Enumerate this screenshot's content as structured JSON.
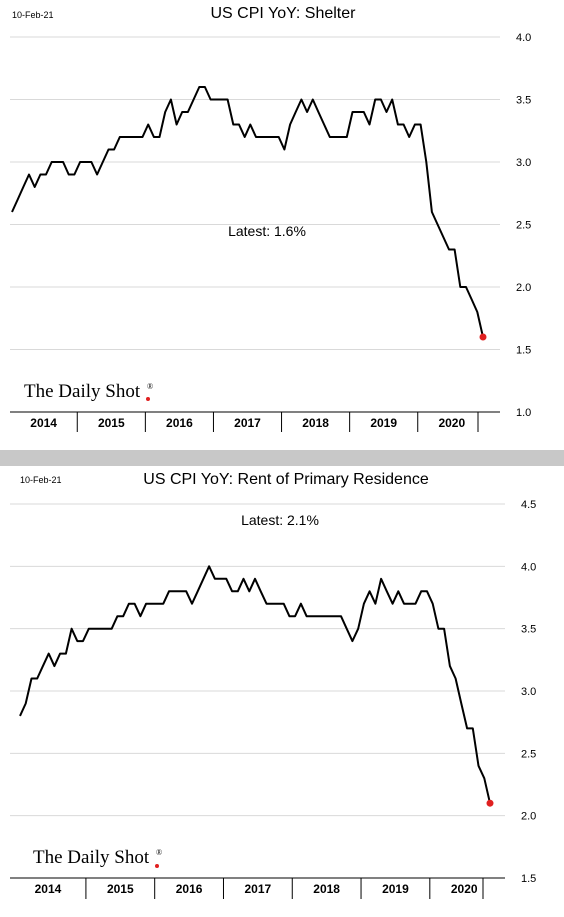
{
  "chart_data": [
    {
      "type": "line",
      "date_label": "10-Feb-21",
      "title": "US CPI YoY: Shelter",
      "annotation": "Latest:  1.6%",
      "source_logo": "The Daily Shot",
      "source_logo_mark": "®",
      "ylim": [
        1.0,
        4.0
      ],
      "yticks": [
        "1.0",
        "1.5",
        "2.0",
        "2.5",
        "3.0",
        "3.5",
        "4.0"
      ],
      "year_labels": [
        "2014",
        "2015",
        "2016",
        "2017",
        "2018",
        "2019",
        "2020"
      ],
      "grid": true,
      "x_start": "2014-01",
      "x_end": "2020-12",
      "last_point_color": "#e02020",
      "y": [
        2.6,
        2.7,
        2.8,
        2.9,
        2.8,
        2.9,
        2.9,
        3.0,
        3.0,
        3.0,
        2.9,
        2.9,
        3.0,
        3.0,
        3.0,
        2.9,
        3.0,
        3.1,
        3.1,
        3.2,
        3.2,
        3.2,
        3.2,
        3.2,
        3.3,
        3.2,
        3.2,
        3.4,
        3.5,
        3.3,
        3.4,
        3.4,
        3.5,
        3.6,
        3.6,
        3.5,
        3.5,
        3.5,
        3.5,
        3.3,
        3.3,
        3.2,
        3.3,
        3.2,
        3.2,
        3.2,
        3.2,
        3.2,
        3.1,
        3.3,
        3.4,
        3.5,
        3.4,
        3.5,
        3.4,
        3.3,
        3.2,
        3.2,
        3.2,
        3.2,
        3.4,
        3.4,
        3.4,
        3.3,
        3.5,
        3.5,
        3.4,
        3.5,
        3.3,
        3.3,
        3.2,
        3.3,
        3.3,
        3.0,
        2.6,
        2.5,
        2.4,
        2.3,
        2.3,
        2.0,
        2.0,
        1.9,
        1.8,
        1.6
      ]
    },
    {
      "type": "line",
      "date_label": "10-Feb-21",
      "title": "US CPI YoY: Rent of Primary Residence",
      "annotation": "Latest:  2.1%",
      "source_logo": "The Daily Shot",
      "source_logo_mark": "®",
      "ylim": [
        1.5,
        4.5
      ],
      "yticks": [
        "1.5",
        "2.0",
        "2.5",
        "3.0",
        "3.5",
        "4.0",
        "4.5"
      ],
      "year_labels": [
        "2014",
        "2015",
        "2016",
        "2017",
        "2018",
        "2019",
        "2020"
      ],
      "grid": true,
      "x_start": "2014-01",
      "x_end": "2020-12",
      "last_point_color": "#e02020",
      "y": [
        2.8,
        2.9,
        3.1,
        3.1,
        3.2,
        3.3,
        3.2,
        3.3,
        3.3,
        3.5,
        3.4,
        3.4,
        3.5,
        3.5,
        3.5,
        3.5,
        3.5,
        3.6,
        3.6,
        3.7,
        3.7,
        3.6,
        3.7,
        3.7,
        3.7,
        3.7,
        3.8,
        3.8,
        3.8,
        3.8,
        3.7,
        3.8,
        3.9,
        4.0,
        3.9,
        3.9,
        3.9,
        3.8,
        3.8,
        3.9,
        3.8,
        3.9,
        3.8,
        3.7,
        3.7,
        3.7,
        3.7,
        3.6,
        3.6,
        3.7,
        3.6,
        3.6,
        3.6,
        3.6,
        3.6,
        3.6,
        3.6,
        3.5,
        3.4,
        3.5,
        3.7,
        3.8,
        3.7,
        3.9,
        3.8,
        3.7,
        3.8,
        3.7,
        3.7,
        3.7,
        3.8,
        3.8,
        3.7,
        3.5,
        3.5,
        3.2,
        3.1,
        2.9,
        2.7,
        2.7,
        2.4,
        2.3,
        2.1
      ]
    }
  ]
}
